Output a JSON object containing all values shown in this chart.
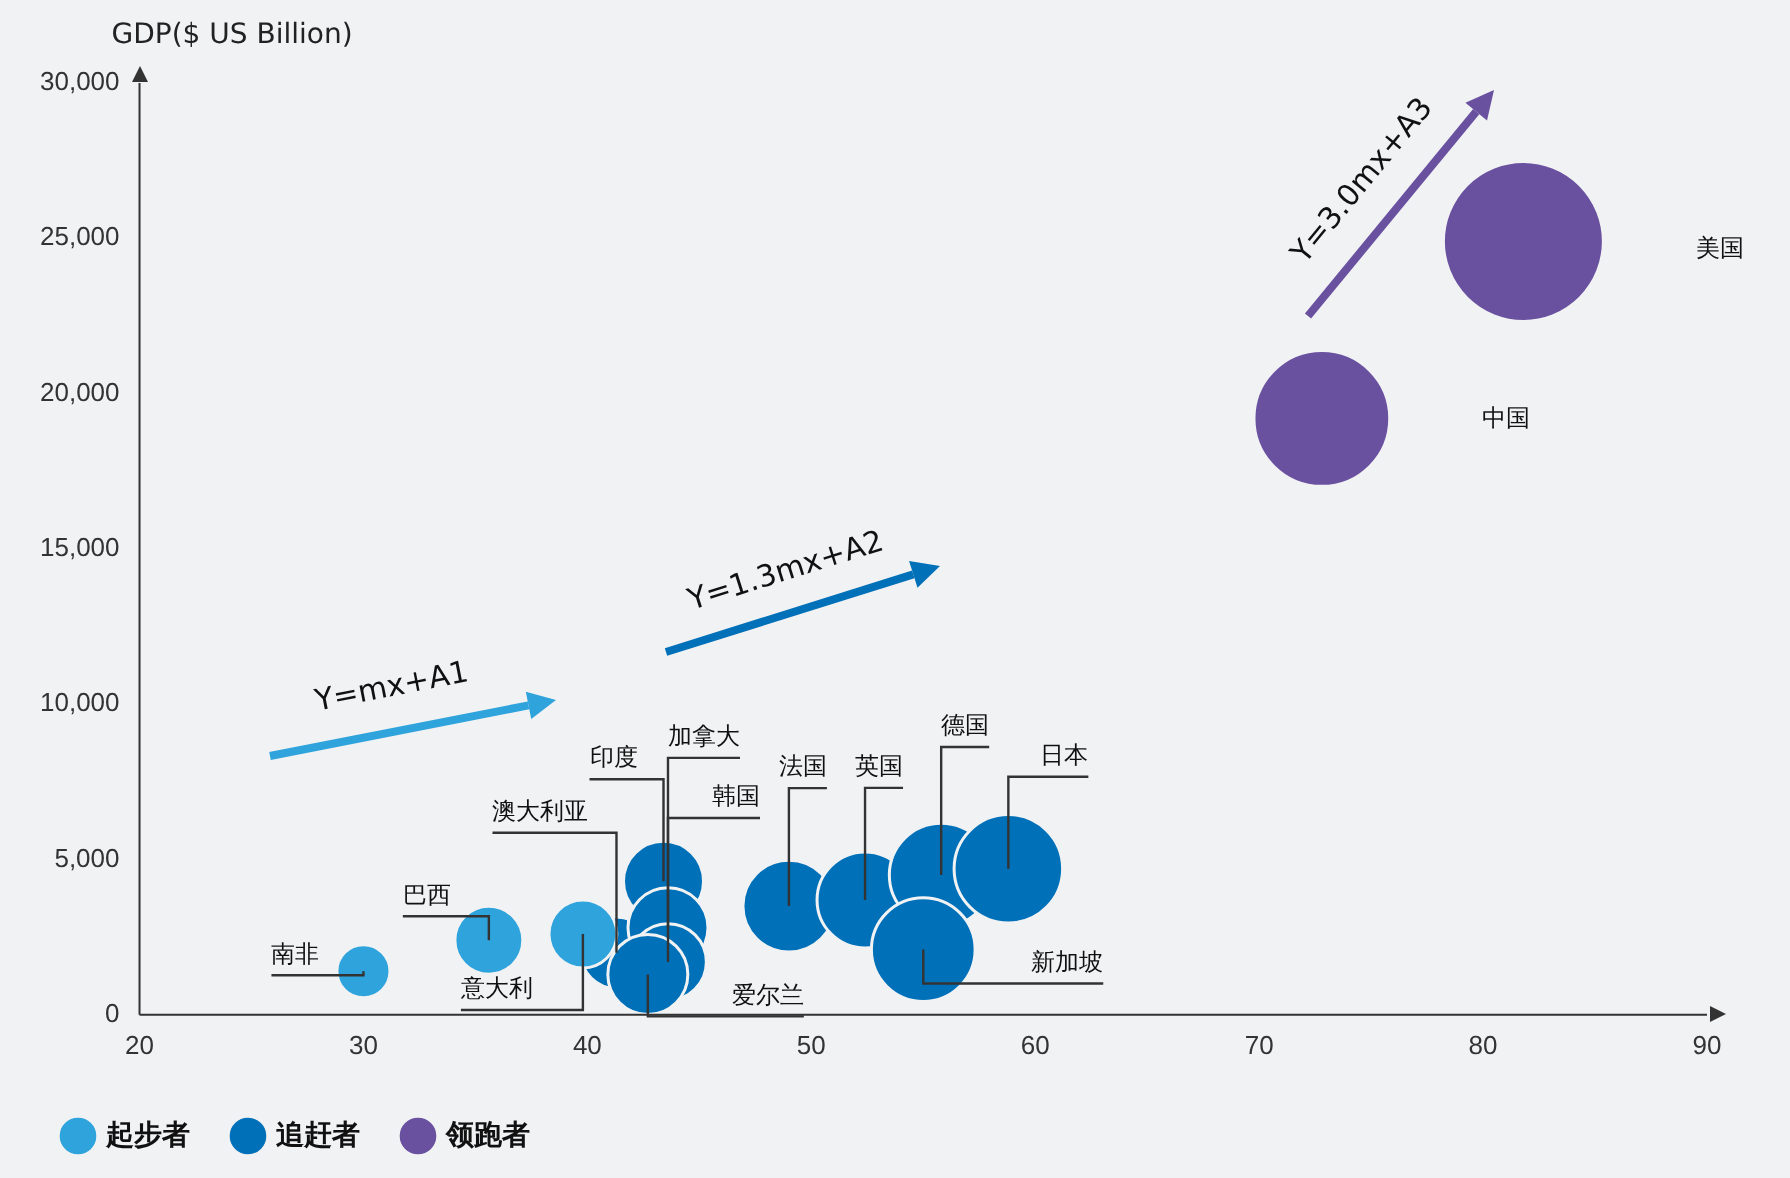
{
  "chart_data": {
    "type": "bubble",
    "ylabel": "GDP($ US Billion)",
    "xlim": [
      20,
      90
    ],
    "xticks": [
      20,
      30,
      40,
      50,
      60,
      70,
      80,
      90
    ],
    "ylim": [
      0,
      30000
    ],
    "yticks": [
      {
        "value": 0,
        "label": "0"
      },
      {
        "value": 5000,
        "label": "5,000"
      },
      {
        "value": 10000,
        "label": "10,000"
      },
      {
        "value": 15000,
        "label": "15,000"
      },
      {
        "value": 20000,
        "label": "20,000"
      },
      {
        "value": 25000,
        "label": "25,000"
      },
      {
        "value": 30000,
        "label": "30,000"
      }
    ],
    "grid": false,
    "legend": "bottom",
    "series": [
      {
        "name": "起步者",
        "color": "#2ea3dc",
        "x": [
          30,
          35.6,
          39.8
        ],
        "values": [
          1400,
          2400,
          2600
        ],
        "sizes": [
          0.11,
          0.18,
          0.18
        ]
      },
      {
        "name": "追赶者",
        "color": "#0070b8",
        "x": [
          41.3,
          43.4,
          43.6,
          43.6,
          42.7,
          49,
          52.4,
          55.8,
          58.8,
          55
        ],
        "values": [
          2000,
          4300,
          2800,
          1700,
          1300,
          3500,
          3700,
          4500,
          4700,
          2100
        ],
        "sizes": [
          0.2,
          0.25,
          0.25,
          0.23,
          0.25,
          0.33,
          0.36,
          0.42,
          0.46,
          0.42
        ]
      },
      {
        "name": "领跑者",
        "color": "#6a51a0",
        "x": [
          72.8,
          81.8
        ],
        "values": [
          19200,
          24900
        ],
        "sizes": [
          0.72,
          1
        ]
      }
    ],
    "annotations": [
      "Y=mx+A1",
      "Y=1.3mx+A2",
      "Y=3.0mx+A3",
      {
        "text": "南非",
        "x": 30,
        "y": 1400
      },
      {
        "text": "巴西",
        "x": 35.6,
        "y": 2400
      },
      {
        "text": "意大利",
        "x": 39.8,
        "y": 2600
      },
      {
        "text": "澳大利亚",
        "x": 41.3,
        "y": 2000
      },
      {
        "text": "印度",
        "x": 43.4,
        "y": 4300
      },
      {
        "text": "加拿大",
        "x": 43.6,
        "y": 2800
      },
      {
        "text": "韩国",
        "x": 43.6,
        "y": 1700
      },
      {
        "text": "爱尔兰",
        "x": 42.7,
        "y": 1300
      },
      {
        "text": "法国",
        "x": 49,
        "y": 3500
      },
      {
        "text": "英国",
        "x": 52.4,
        "y": 3700
      },
      {
        "text": "德国",
        "x": 55.8,
        "y": 4500
      },
      {
        "text": "日本",
        "x": 58.8,
        "y": 4700
      },
      {
        "text": "新加坡",
        "x": 55,
        "y": 2100
      },
      "中国",
      "美国"
    ]
  }
}
